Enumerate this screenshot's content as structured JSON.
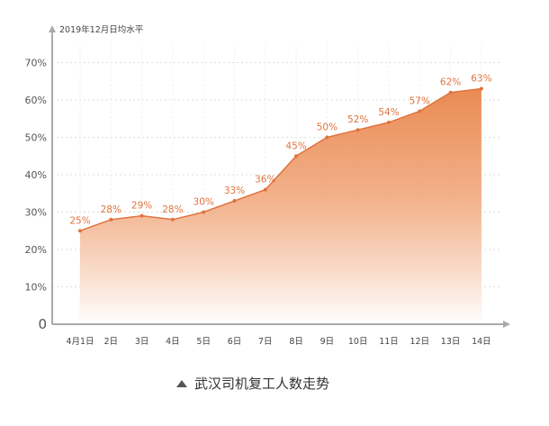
{
  "chart_data": {
    "type": "area",
    "title": "武汉司机复工人数走势",
    "ylabel": "2019年12月日均水平",
    "categories": [
      "4月1日",
      "2日",
      "3日",
      "4日",
      "5日",
      "6日",
      "7日",
      "8日",
      "9日",
      "10日",
      "11日",
      "12日",
      "13日",
      "14日"
    ],
    "values": [
      25,
      28,
      29,
      28,
      30,
      33,
      36,
      45,
      50,
      52,
      54,
      57,
      62,
      63
    ],
    "value_labels": [
      "25%",
      "28%",
      "29%",
      "28%",
      "30%",
      "33%",
      "36%",
      "45%",
      "50%",
      "52%",
      "54%",
      "57%",
      "62%",
      "63%"
    ],
    "y_ticks": [
      0,
      10,
      20,
      30,
      40,
      50,
      60,
      70
    ],
    "y_tick_labels": [
      "0",
      "10%",
      "20%",
      "30%",
      "40%",
      "50%",
      "60%",
      "70%"
    ],
    "ylim": [
      0,
      75
    ],
    "grid": true,
    "colors": {
      "accent": "#e0733d",
      "area_top": "#e98a53",
      "area_bottom": "#ffffff",
      "axis": "#aaaaaa",
      "grid": "#dddddd"
    }
  }
}
